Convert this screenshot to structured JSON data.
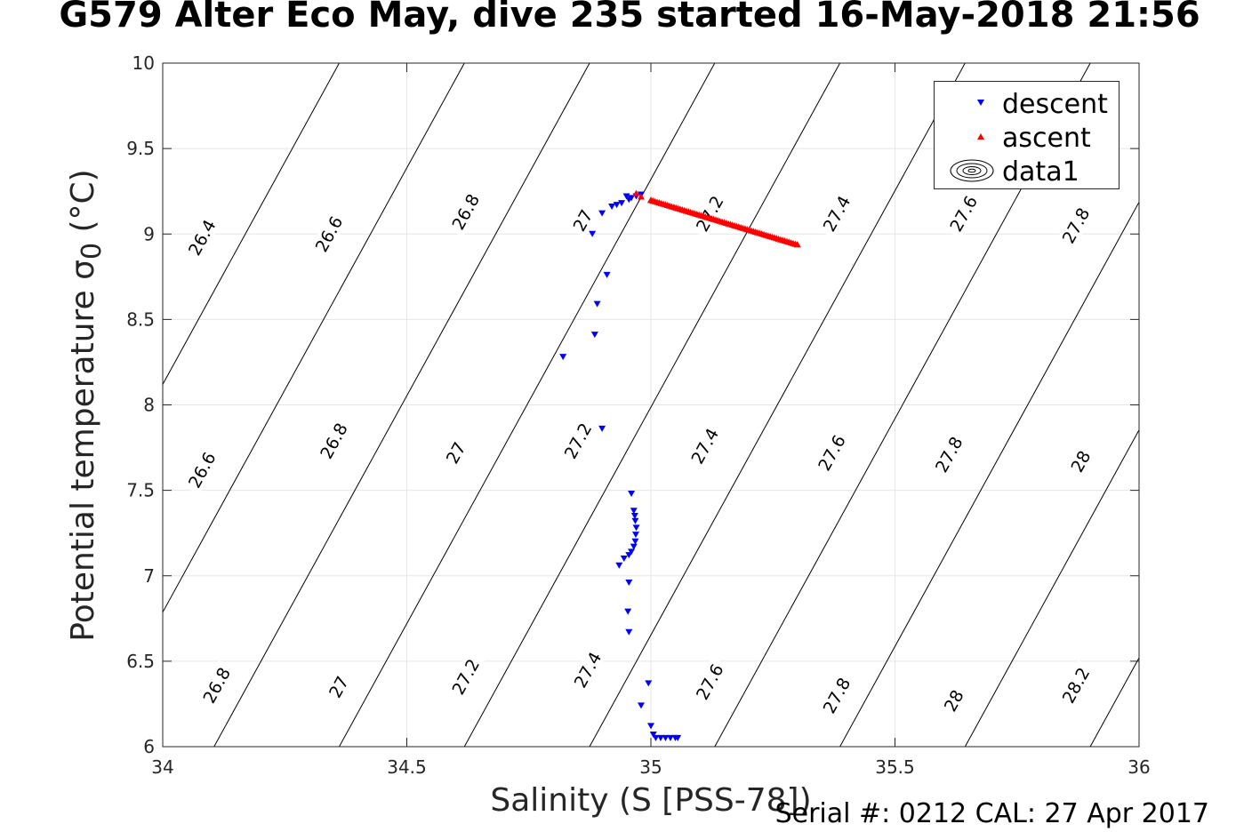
{
  "title": "G579 Alter Eco May, dive 235 started 16-May-2018 21:56",
  "footer": "Serial #: 0212  CAL: 27 Apr 2017",
  "chart_data": {
    "type": "scatter",
    "xlabel": "Salinity (S [PSS-78])",
    "ylabel": "Potential temperature σ0 (°C)",
    "xlim": [
      34,
      36
    ],
    "ylim": [
      6,
      10
    ],
    "xticks": [
      "34",
      "34.5",
      "35",
      "35.5",
      "36"
    ],
    "yticks": [
      "6",
      "6.5",
      "7",
      "7.5",
      "8",
      "8.5",
      "9",
      "9.5",
      "10"
    ],
    "grid": true,
    "legend_position": "top-right",
    "legend": [
      "descent",
      "ascent",
      "data1"
    ],
    "series": [
      {
        "name": "descent",
        "marker": "triangle-down",
        "color": "#0000ff",
        "points": [
          [
            34.98,
            9.23
          ],
          [
            34.97,
            9.22
          ],
          [
            34.96,
            9.21
          ],
          [
            34.95,
            9.22
          ],
          [
            34.955,
            9.2
          ],
          [
            34.94,
            9.18
          ],
          [
            34.93,
            9.17
          ],
          [
            34.92,
            9.16
          ],
          [
            34.9,
            9.12
          ],
          [
            34.88,
            9.0
          ],
          [
            34.91,
            8.76
          ],
          [
            34.89,
            8.59
          ],
          [
            34.885,
            8.41
          ],
          [
            34.82,
            8.28
          ],
          [
            34.9,
            7.86
          ],
          [
            34.96,
            7.48
          ],
          [
            34.965,
            7.38
          ],
          [
            34.967,
            7.35
          ],
          [
            34.968,
            7.32
          ],
          [
            34.97,
            7.28
          ],
          [
            34.969,
            7.24
          ],
          [
            34.968,
            7.2
          ],
          [
            34.965,
            7.17
          ],
          [
            34.96,
            7.14
          ],
          [
            34.955,
            7.12
          ],
          [
            34.945,
            7.1
          ],
          [
            34.935,
            7.06
          ],
          [
            34.955,
            6.96
          ],
          [
            34.953,
            6.79
          ],
          [
            34.955,
            6.67
          ],
          [
            34.995,
            6.37
          ],
          [
            34.98,
            6.24
          ],
          [
            35.0,
            6.12
          ],
          [
            35.005,
            6.07
          ],
          [
            35.01,
            6.05
          ],
          [
            35.02,
            6.05
          ],
          [
            35.03,
            6.05
          ],
          [
            35.04,
            6.05
          ],
          [
            35.05,
            6.05
          ],
          [
            35.055,
            6.05
          ]
        ]
      },
      {
        "name": "ascent",
        "marker": "triangle-up",
        "color": "#ff0000",
        "points": [
          [
            34.97,
            9.24
          ],
          [
            34.98,
            9.22
          ],
          [
            35.0,
            9.2
          ],
          [
            35.3,
            8.94
          ]
        ],
        "dense_line_samples": 70
      }
    ],
    "contours": {
      "name": "data1",
      "color": "#000000",
      "levels": [
        26.4,
        26.6,
        26.8,
        27.0,
        27.2,
        27.4,
        27.6,
        27.8,
        28.0,
        28.2
      ],
      "labels": [
        {
          "text": "26.4",
          "x": 34.08,
          "y": 8.98
        },
        {
          "text": "26.6",
          "x": 34.34,
          "y": 9.0
        },
        {
          "text": "26.8",
          "x": 34.62,
          "y": 9.13
        },
        {
          "text": "27",
          "x": 34.86,
          "y": 9.08
        },
        {
          "text": "27.2",
          "x": 35.12,
          "y": 9.12
        },
        {
          "text": "27.4",
          "x": 35.38,
          "y": 9.12
        },
        {
          "text": "27.6",
          "x": 35.64,
          "y": 9.12
        },
        {
          "text": "27.8",
          "x": 35.87,
          "y": 9.05
        },
        {
          "text": "26.6",
          "x": 34.08,
          "y": 7.62
        },
        {
          "text": "26.8",
          "x": 34.35,
          "y": 7.79
        },
        {
          "text": "27",
          "x": 34.6,
          "y": 7.72
        },
        {
          "text": "27.2",
          "x": 34.85,
          "y": 7.79
        },
        {
          "text": "27.4",
          "x": 35.11,
          "y": 7.76
        },
        {
          "text": "27.6",
          "x": 35.37,
          "y": 7.72
        },
        {
          "text": "27.8",
          "x": 35.61,
          "y": 7.71
        },
        {
          "text": "28",
          "x": 35.88,
          "y": 7.67
        },
        {
          "text": "26.8",
          "x": 34.11,
          "y": 6.36
        },
        {
          "text": "27",
          "x": 34.36,
          "y": 6.35
        },
        {
          "text": "27.2",
          "x": 34.62,
          "y": 6.41
        },
        {
          "text": "27.4",
          "x": 34.87,
          "y": 6.45
        },
        {
          "text": "27.6",
          "x": 35.12,
          "y": 6.38
        },
        {
          "text": "27.8",
          "x": 35.38,
          "y": 6.3
        },
        {
          "text": "28",
          "x": 35.62,
          "y": 6.27
        },
        {
          "text": "28.2",
          "x": 35.87,
          "y": 6.36
        }
      ]
    }
  }
}
